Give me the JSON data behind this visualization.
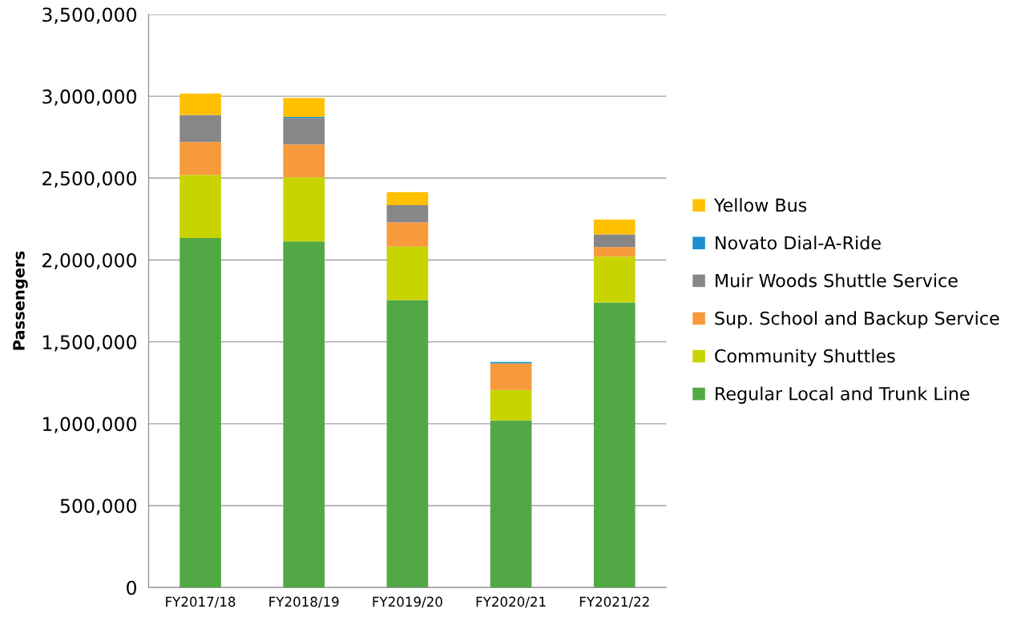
{
  "chart_data": {
    "type": "bar",
    "stacked": true,
    "ylabel": "Passengers",
    "categories": [
      "FY2017/18",
      "FY2018/19",
      "FY2019/20",
      "FY2020/21",
      "FY2021/22"
    ],
    "series": [
      {
        "name": "Regular Local and Trunk Line",
        "color": "#53a846",
        "values": [
          2135000,
          2114000,
          1755000,
          1020000,
          1740000
        ]
      },
      {
        "name": "Community Shuttles",
        "color": "#c8d400",
        "values": [
          385000,
          391000,
          327000,
          186000,
          281000
        ]
      },
      {
        "name": "Sup. School and Backup Service",
        "color": "#f79a3c",
        "values": [
          200000,
          201000,
          148000,
          163000,
          59000
        ]
      },
      {
        "name": "Muir Woods Shuttle Service",
        "color": "#878787",
        "values": [
          165000,
          160000,
          105000,
          0,
          77000
        ]
      },
      {
        "name": "Novato Dial-A-Ride",
        "color": "#1b8fd0",
        "values": [
          0,
          7000,
          0,
          8000,
          0
        ]
      },
      {
        "name": "Yellow Bus",
        "color": "#ffc000",
        "values": [
          132000,
          116000,
          80000,
          0,
          90000
        ]
      }
    ],
    "ylim": [
      0,
      3500000
    ],
    "yticks": [
      {
        "value": 0,
        "label": "0"
      },
      {
        "value": 500000,
        "label": "500,000"
      },
      {
        "value": 1000000,
        "label": "1,000,000"
      },
      {
        "value": 1500000,
        "label": "1,500,000"
      },
      {
        "value": 2000000,
        "label": "2,000,000"
      },
      {
        "value": 2500000,
        "label": "2,500,000"
      },
      {
        "value": 3000000,
        "label": "3,000,000"
      },
      {
        "value": 3500000,
        "label": "3,500,000"
      }
    ],
    "grid": "y",
    "legend": "right"
  }
}
